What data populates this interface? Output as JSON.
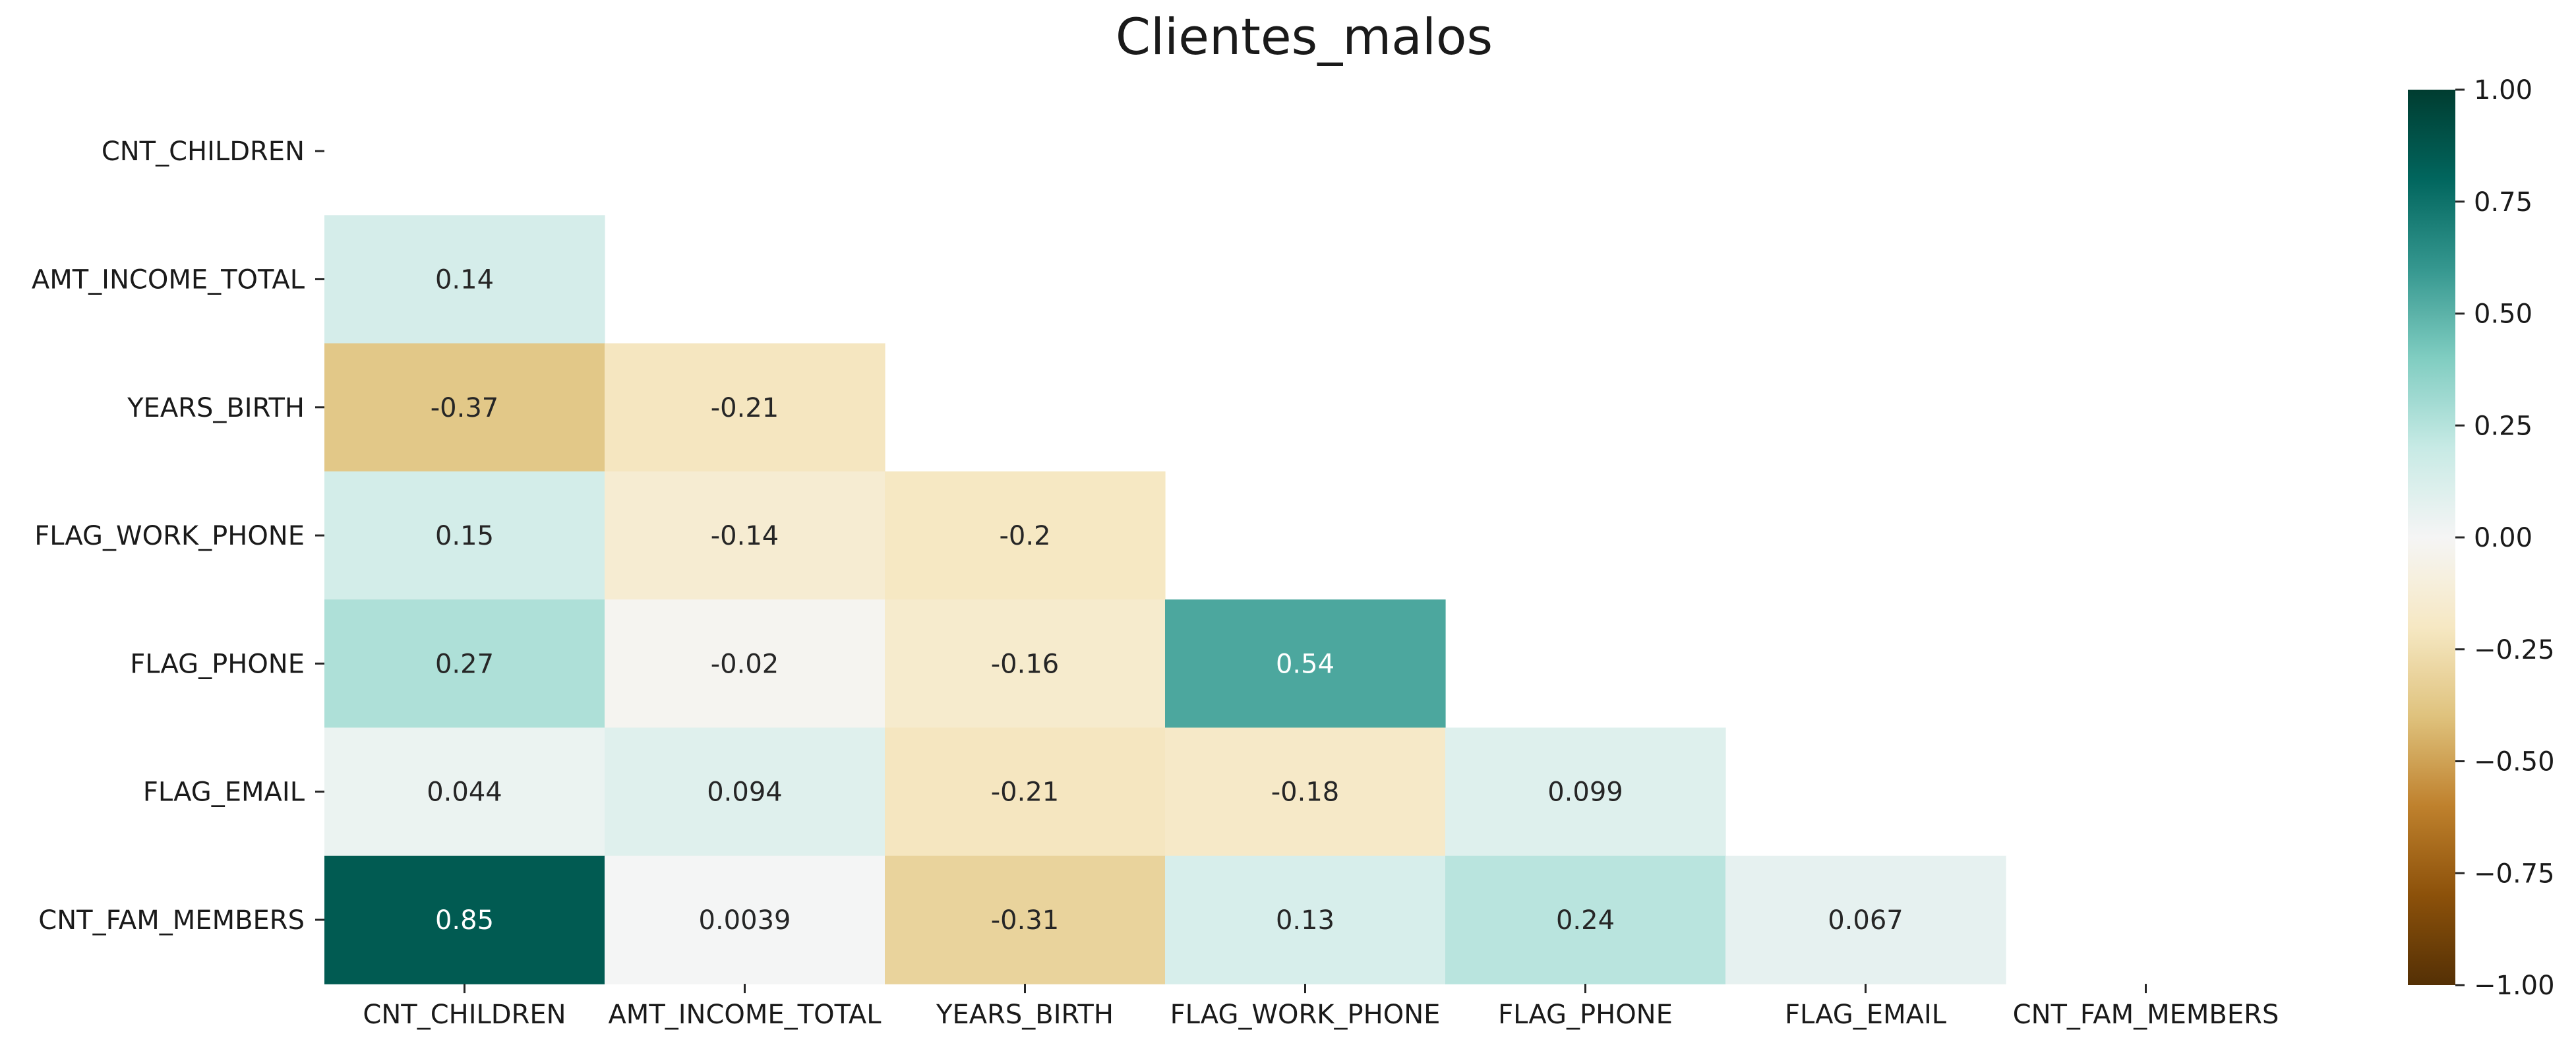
{
  "chart_data": {
    "type": "heatmap",
    "title": "Clientes_malos",
    "xlabel": "",
    "ylabel": "",
    "rows": [
      "CNT_CHILDREN",
      "AMT_INCOME_TOTAL",
      "YEARS_BIRTH",
      "FLAG_WORK_PHONE",
      "FLAG_PHONE",
      "FLAG_EMAIL",
      "CNT_FAM_MEMBERS"
    ],
    "columns": [
      "CNT_CHILDREN",
      "AMT_INCOME_TOTAL",
      "YEARS_BIRTH",
      "FLAG_WORK_PHONE",
      "FLAG_PHONE",
      "FLAG_EMAIL",
      "CNT_FAM_MEMBERS"
    ],
    "cells": [
      {
        "row": 1,
        "col": 0,
        "value": 0.14,
        "label": "0.14"
      },
      {
        "row": 2,
        "col": 0,
        "value": -0.37,
        "label": "-0.37"
      },
      {
        "row": 2,
        "col": 1,
        "value": -0.21,
        "label": "-0.21"
      },
      {
        "row": 3,
        "col": 0,
        "value": 0.15,
        "label": "0.15"
      },
      {
        "row": 3,
        "col": 1,
        "value": -0.14,
        "label": "-0.14"
      },
      {
        "row": 3,
        "col": 2,
        "value": -0.2,
        "label": "-0.2"
      },
      {
        "row": 4,
        "col": 0,
        "value": 0.27,
        "label": "0.27"
      },
      {
        "row": 4,
        "col": 1,
        "value": -0.02,
        "label": "-0.02"
      },
      {
        "row": 4,
        "col": 2,
        "value": -0.16,
        "label": "-0.16"
      },
      {
        "row": 4,
        "col": 3,
        "value": 0.54,
        "label": "0.54"
      },
      {
        "row": 5,
        "col": 0,
        "value": 0.044,
        "label": "0.044"
      },
      {
        "row": 5,
        "col": 1,
        "value": 0.094,
        "label": "0.094"
      },
      {
        "row": 5,
        "col": 2,
        "value": -0.21,
        "label": "-0.21"
      },
      {
        "row": 5,
        "col": 3,
        "value": -0.18,
        "label": "-0.18"
      },
      {
        "row": 5,
        "col": 4,
        "value": 0.099,
        "label": "0.099"
      },
      {
        "row": 6,
        "col": 0,
        "value": 0.85,
        "label": "0.85"
      },
      {
        "row": 6,
        "col": 1,
        "value": 0.0039,
        "label": "0.0039"
      },
      {
        "row": 6,
        "col": 2,
        "value": -0.31,
        "label": "-0.31"
      },
      {
        "row": 6,
        "col": 3,
        "value": 0.13,
        "label": "0.13"
      },
      {
        "row": 6,
        "col": 4,
        "value": 0.24,
        "label": "0.24"
      },
      {
        "row": 6,
        "col": 5,
        "value": 0.067,
        "label": "0.067"
      }
    ],
    "mask": "upper-triangle-including-diagonal",
    "colormap": "BrBG",
    "vmin": -1.0,
    "vmax": 1.0,
    "colorbar": {
      "ticks": [
        1.0,
        0.75,
        0.5,
        0.25,
        0.0,
        -0.25,
        -0.5,
        -0.75,
        -1.0
      ],
      "tick_labels": [
        "1.00",
        "0.75",
        "0.50",
        "0.25",
        "0.00",
        "−0.25",
        "−0.50",
        "−0.75",
        "−1.00"
      ]
    },
    "grid": false,
    "legend": "colorbar-right"
  }
}
